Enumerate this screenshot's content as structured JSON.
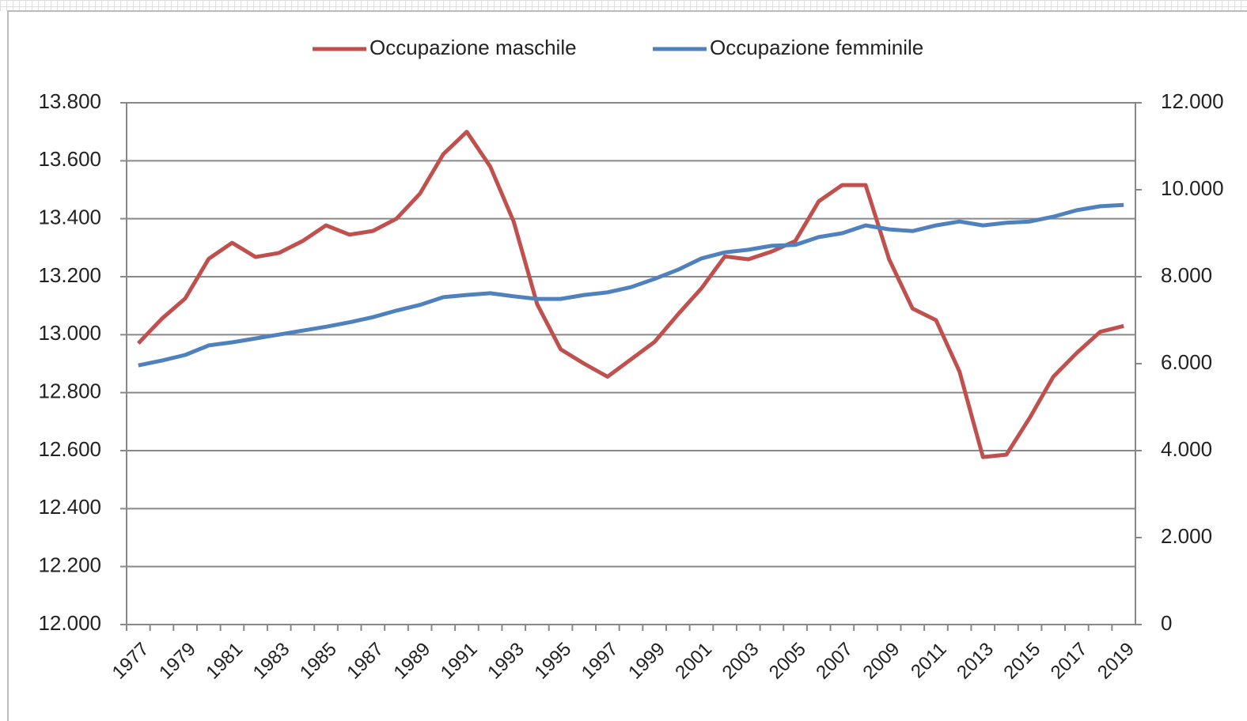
{
  "chart_data": {
    "type": "line",
    "categories": [
      "1977",
      null,
      "1979",
      null,
      "1981",
      null,
      "1983",
      null,
      "1985",
      null,
      "1987",
      null,
      "1989",
      null,
      "1991",
      null,
      "1993",
      null,
      "1995",
      null,
      "1997",
      null,
      "1999",
      null,
      "2001",
      null,
      "2003",
      null,
      "2005",
      null,
      "2007",
      null,
      "2009",
      null,
      "2011",
      null,
      "2013",
      null,
      "2015",
      null,
      "2017",
      null,
      "2019"
    ],
    "series": [
      {
        "name": "Occupazione maschile",
        "color": "#c0504d",
        "values": [
          12970,
          13055,
          13125,
          13262,
          13317,
          13268,
          13282,
          13323,
          13377,
          13345,
          13358,
          13400,
          13486,
          13623,
          13700,
          13580,
          13390,
          13105,
          12950,
          12900,
          12855,
          12915,
          12975,
          13070,
          13160,
          13270,
          13260,
          13287,
          13323,
          13460,
          13516,
          13516,
          13260,
          13090,
          13050,
          12873,
          12578,
          12586,
          12714,
          12855,
          12937,
          13010,
          13030
        ]
      },
      {
        "name": "Occupazione femminile",
        "color": "#4f81bd",
        "axis": "y2",
        "values": [
          5960,
          6070,
          6200,
          6420,
          6490,
          6580,
          6670,
          6760,
          6850,
          6950,
          7070,
          7220,
          7350,
          7530,
          7580,
          7620,
          7550,
          7490,
          7490,
          7580,
          7640,
          7760,
          7950,
          8160,
          8420,
          8560,
          8620,
          8710,
          8730,
          8910,
          9000,
          9180,
          9090,
          9050,
          9180,
          9270,
          9180,
          9240,
          9270,
          9380,
          9530,
          9620,
          9650
        ]
      }
    ],
    "ylim": [
      12000,
      13800
    ],
    "yticks": [
      {
        "value": 12000,
        "label": "12.000"
      },
      {
        "value": 12200,
        "label": "12.200"
      },
      {
        "value": 12400,
        "label": "12.400"
      },
      {
        "value": 12600,
        "label": "12.600"
      },
      {
        "value": 12800,
        "label": "12.800"
      },
      {
        "value": 13000,
        "label": "13.000"
      },
      {
        "value": 13200,
        "label": "13.200"
      },
      {
        "value": 13400,
        "label": "13.400"
      },
      {
        "value": 13600,
        "label": "13.600"
      },
      {
        "value": 13800,
        "label": "13.800"
      }
    ],
    "y2lim": [
      0,
      12000
    ],
    "y2ticks": [
      0,
      {
        "value": 2000,
        "label": "2.000"
      },
      {
        "value": 4000,
        "label": "4.000"
      },
      {
        "value": 6000,
        "label": "6.000"
      },
      {
        "value": 8000,
        "label": "8.000"
      },
      {
        "value": 10000,
        "label": "10.000"
      },
      {
        "value": 12000,
        "label": "12.000"
      }
    ],
    "grid": true,
    "legend": "top"
  }
}
